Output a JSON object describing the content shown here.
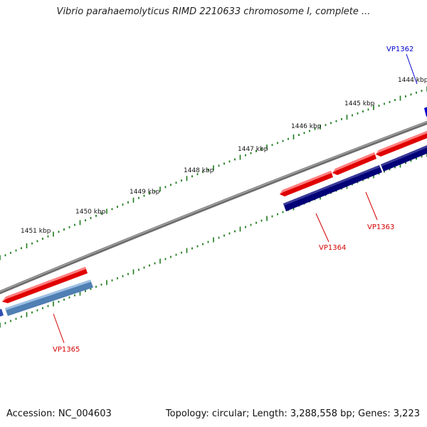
{
  "title": "Vibrio parahaemolyticus RIMD 2210633 chromosome I, complete ...",
  "accession": "Accession: NC_004603",
  "summary": "Topology: circular; Length: 3,288,558 bp; Genes: 3,223",
  "colors": {
    "backbone": "#7f7f7f",
    "tick": "#1d7a1d",
    "forward_gene": "#e00000",
    "reverse_gene_dark": "#000077",
    "reverse_gene_light": "#4f7fb3",
    "label_red": "#d40000",
    "label_blue": "#0000cc"
  },
  "scale_labels": [
    "1444 kbp",
    "1445 kbp",
    "1446 kbp",
    "1447 kbp",
    "1448 kbp",
    "1449 kbp",
    "1450 kbp",
    "1451 kbp"
  ],
  "genes": [
    {
      "name": "VP1362",
      "strand": "reverse",
      "color": "blue"
    },
    {
      "name": "VP1363",
      "strand": "forward",
      "color": "red"
    },
    {
      "name": "VP1364",
      "strand": "forward",
      "color": "red"
    },
    {
      "name": "VP1365",
      "strand": "forward",
      "color": "red"
    }
  ]
}
